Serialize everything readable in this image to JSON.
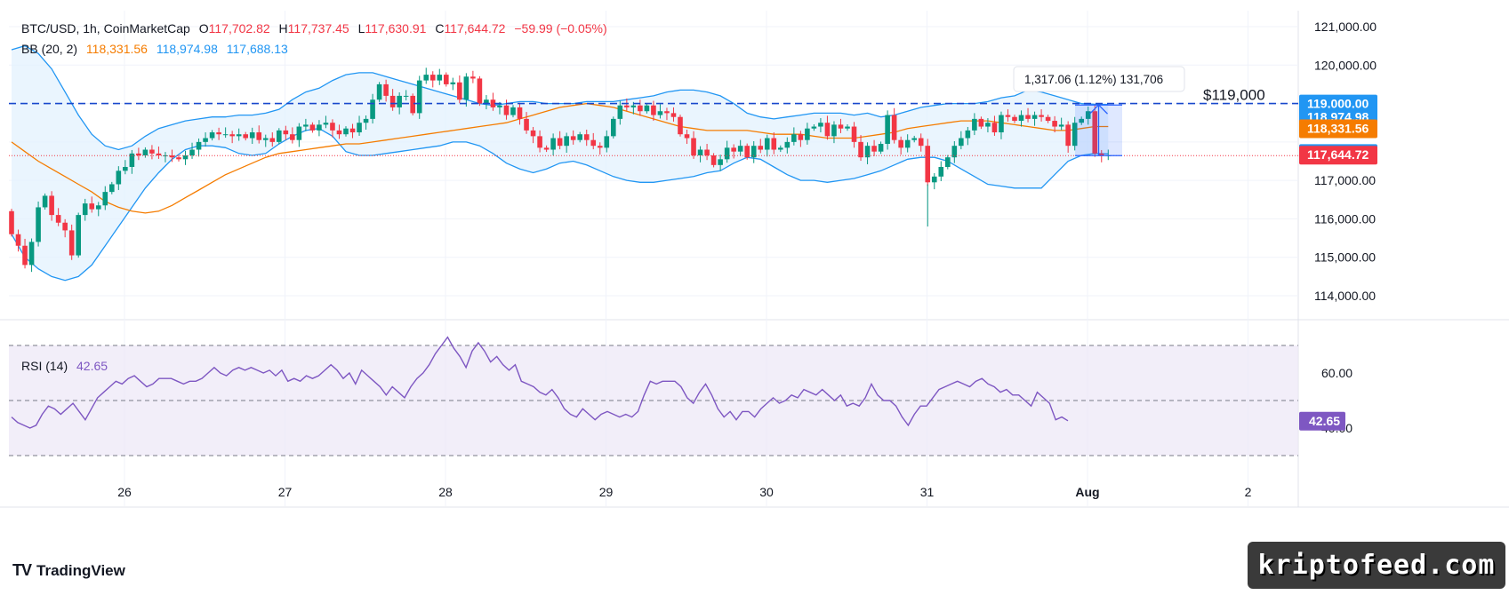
{
  "header": {
    "symbol": "BTC/USD, 1h, CoinMarketCap",
    "o_label": "O",
    "o_value": "117,702.82",
    "h_label": "H",
    "h_value": "117,737.45",
    "l_label": "L",
    "l_value": "117,630.91",
    "c_label": "C",
    "c_value": "117,644.72",
    "change": "−59.99 (−0.05%)"
  },
  "bb_legend": {
    "label": "BB (20, 2)",
    "basis": "118,331.56",
    "upper": "118,974.98",
    "lower": "117,688.13"
  },
  "rsi_legend": {
    "label": "RSI (14)",
    "value": "42.65"
  },
  "price_axis": {
    "ticks": [
      {
        "value": 121000,
        "label": "121,000.00"
      },
      {
        "value": 120000,
        "label": "120,000.00"
      },
      {
        "value": 117000,
        "label": "117,000.00"
      },
      {
        "value": 116000,
        "label": "116,000.00"
      },
      {
        "value": 115000,
        "label": "115,000.00"
      },
      {
        "value": 114000,
        "label": "114,000.00"
      }
    ],
    "badges": [
      {
        "value": 119000,
        "label": "119,000.00",
        "color": "#2196f3"
      },
      {
        "value": 118974.98,
        "label": "118,974.98",
        "color": "#2196f3"
      },
      {
        "value": 118331.56,
        "label": "118,331.56",
        "color": "#f57c00"
      },
      {
        "value": 117688.13,
        "label": "117,688.13",
        "color": "#2196f3"
      },
      {
        "value": 117644.72,
        "label": "117,644.72",
        "color": "#f23645"
      }
    ]
  },
  "rsi_axis": {
    "ticks": [
      {
        "value": 60,
        "label": "60.00"
      },
      {
        "value": 40,
        "label": "40.00"
      }
    ],
    "badge": {
      "value": 42.65,
      "label": "42.65",
      "color": "#7e57c2"
    }
  },
  "time_axis": {
    "labels": [
      {
        "label": "26",
        "bold": false
      },
      {
        "label": "27",
        "bold": false
      },
      {
        "label": "28",
        "bold": false
      },
      {
        "label": "29",
        "bold": false
      },
      {
        "label": "30",
        "bold": false
      },
      {
        "label": "31",
        "bold": false
      },
      {
        "label": "Aug",
        "bold": true
      },
      {
        "label": "2",
        "bold": false
      }
    ]
  },
  "annotations": {
    "level_label": "$119,000",
    "level_value": 119000,
    "measure_text": "1,317.06 (1.12%) 131,706",
    "measure_from": 117644.72,
    "measure_to": 118961.78
  },
  "colors": {
    "up": "#089981",
    "down": "#f23645",
    "bb_band": "#2196f3",
    "bb_basis": "#f57c00",
    "bb_fill": "#e3f2fd",
    "rsi_line": "#7e57c2",
    "rsi_fill": "#ede7f6",
    "level": "#1848cc"
  },
  "footer": {
    "brand": "TradingView",
    "watermark": "kriptofeed.com"
  },
  "chart_data": {
    "type": "candlestick",
    "title": "BTC/USD, 1h, CoinMarketCap",
    "interval": "1h",
    "ylim": [
      113500,
      121200
    ],
    "x_start": "2025-07-25 08:00",
    "candles_close": [
      115600,
      115300,
      114800,
      115400,
      116300,
      116600,
      116100,
      115900,
      115700,
      115050,
      116100,
      116400,
      116250,
      116350,
      116700,
      116900,
      117250,
      117350,
      117700,
      117650,
      117800,
      117700,
      117650,
      117650,
      117600,
      117550,
      117650,
      117800,
      118000,
      118100,
      118250,
      118200,
      118200,
      118150,
      118200,
      118100,
      118250,
      118050,
      118100,
      118000,
      118300,
      118200,
      118050,
      118400,
      118450,
      118300,
      118450,
      118500,
      118300,
      118200,
      118350,
      118250,
      118500,
      118600,
      119100,
      119500,
      119200,
      118900,
      119200,
      119200,
      118750,
      119600,
      119750,
      119600,
      119750,
      119500,
      119550,
      119100,
      119700,
      119650,
      119000,
      119100,
      118900,
      118950,
      118700,
      118900,
      118600,
      118300,
      118150,
      117850,
      117800,
      118100,
      117900,
      118150,
      118050,
      118200,
      118050,
      117900,
      117850,
      118150,
      118600,
      118950,
      118900,
      118950,
      118800,
      118950,
      118700,
      118800,
      118750,
      118650,
      118200,
      118100,
      117650,
      117800,
      117650,
      117400,
      117550,
      117850,
      117750,
      117900,
      117600,
      117900,
      117800,
      118100,
      117800,
      117850,
      118000,
      118200,
      118050,
      118350,
      118400,
      118500,
      118150,
      118450,
      118350,
      118400,
      118000,
      117600,
      117900,
      117750,
      117950,
      118700,
      118050,
      117850,
      118050,
      118100,
      117900,
      116950,
      117100,
      117350,
      117600,
      117900,
      118100,
      118300,
      118600,
      118400,
      118500,
      118250,
      118700,
      118650,
      118550,
      118700,
      118600,
      118700,
      118650,
      118550,
      118400,
      118450,
      117900,
      118500,
      118600,
      118800,
      117700,
      117650,
      117650
    ],
    "bb_basis": [
      118000,
      117750,
      117500,
      117300,
      117100,
      116900,
      116700,
      116450,
      116300,
      116200,
      116150,
      116200,
      116350,
      116550,
      116750,
      116950,
      117150,
      117300,
      117450,
      117600,
      117700,
      117750,
      117800,
      117850,
      117900,
      117950,
      117950,
      118000,
      118050,
      118100,
      118150,
      118200,
      118250,
      118300,
      118350,
      118400,
      118450,
      118500,
      118600,
      118700,
      118800,
      118900,
      118950,
      119000,
      118950,
      118900,
      118800,
      118700,
      118600,
      118500,
      118400,
      118350,
      118300,
      118300,
      118300,
      118300,
      118250,
      118200,
      118200,
      118200,
      118150,
      118100,
      118100,
      118100,
      118150,
      118200,
      118250,
      118350,
      118400,
      118450,
      118500,
      118550,
      118550,
      118550,
      118500,
      118450,
      118400,
      118350,
      118300,
      118300,
      118350,
      118400,
      118400
    ],
    "bb_upper": [
      120400,
      120500,
      120300,
      119900,
      119300,
      118700,
      118200,
      117900,
      117800,
      117900,
      118150,
      118350,
      118450,
      118550,
      118600,
      118650,
      118650,
      118700,
      118700,
      118750,
      118850,
      119100,
      119300,
      119400,
      119600,
      119750,
      119800,
      119800,
      119700,
      119600,
      119500,
      119400,
      119300,
      119200,
      119100,
      119000,
      118950,
      119000,
      119050,
      119050,
      119000,
      119000,
      119000,
      119050,
      119050,
      119050,
      119100,
      119150,
      119200,
      119300,
      119350,
      119350,
      119300,
      119200,
      119000,
      118750,
      118650,
      118600,
      118650,
      118700,
      118750,
      118750,
      118750,
      118700,
      118750,
      118650,
      118700,
      118800,
      118900,
      118950,
      119000,
      119000,
      119000,
      119050,
      119150,
      119200,
      119350,
      119300,
      119200,
      119100,
      119000,
      118980,
      118975
    ],
    "bb_lower": [
      115600,
      115000,
      114700,
      114500,
      114400,
      114500,
      114800,
      115300,
      115800,
      116300,
      116800,
      117200,
      117550,
      117800,
      117900,
      117900,
      117850,
      117700,
      117650,
      117700,
      117950,
      118150,
      118300,
      118350,
      118150,
      117750,
      117650,
      117650,
      117700,
      117750,
      117800,
      117850,
      117900,
      118000,
      118000,
      117900,
      117700,
      117450,
      117300,
      117200,
      117300,
      117450,
      117500,
      117400,
      117250,
      117100,
      117000,
      116950,
      116950,
      117000,
      117050,
      117100,
      117200,
      117250,
      117450,
      117600,
      117550,
      117350,
      117150,
      117000,
      117000,
      116950,
      117000,
      117050,
      117150,
      117250,
      117400,
      117550,
      117600,
      117600,
      117500,
      117300,
      117100,
      116900,
      116850,
      116800,
      116800,
      116800,
      117150,
      117500,
      117650,
      117700,
      117690
    ],
    "rsi": [
      44,
      42,
      41,
      40,
      41,
      45,
      48,
      47,
      45,
      47,
      49,
      46,
      43,
      47,
      51,
      53,
      55,
      57,
      56,
      58,
      59,
      57,
      55,
      56,
      58,
      58,
      58,
      57,
      56,
      57,
      57,
      58,
      60,
      62,
      60,
      59,
      61,
      62,
      61,
      62,
      61,
      60,
      61,
      59,
      61,
      57,
      58,
      57,
      59,
      58,
      59,
      61,
      63,
      61,
      58,
      60,
      56,
      61,
      59,
      57,
      55,
      52,
      55,
      53,
      51,
      55,
      58,
      60,
      63,
      67,
      70,
      73,
      69,
      66,
      62,
      68,
      71,
      68,
      64,
      66,
      63,
      61,
      63,
      57,
      56,
      55,
      53,
      52,
      54,
      51,
      47,
      45,
      44,
      47,
      45,
      43,
      45,
      46,
      45,
      44,
      45,
      44,
      46,
      52,
      57,
      56,
      57,
      57,
      57,
      55,
      51,
      49,
      53,
      56,
      52,
      47,
      44,
      46,
      43,
      46,
      46,
      44,
      47,
      49,
      51,
      49,
      50,
      52,
      51,
      54,
      53,
      52,
      54,
      52,
      50,
      52,
      48,
      49,
      48,
      51,
      56,
      52,
      50,
      50,
      48,
      44,
      41,
      45,
      48,
      48,
      51,
      54,
      55,
      56,
      57,
      56,
      55,
      57,
      58,
      56,
      55,
      53,
      54,
      52,
      52,
      50,
      48,
      53,
      51,
      49,
      43,
      44,
      42.65
    ],
    "rsi_levels": [
      70,
      50,
      30
    ]
  }
}
